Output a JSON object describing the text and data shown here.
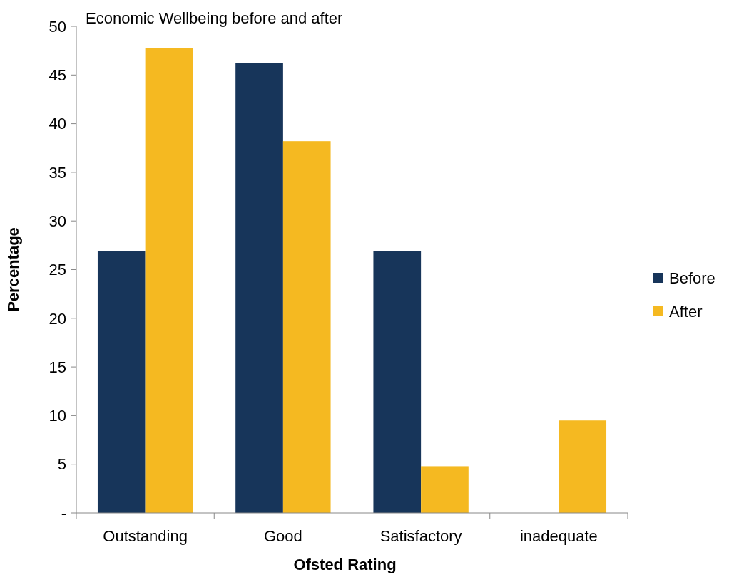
{
  "chart_data": {
    "type": "bar",
    "title": "Economic Wellbeing before and after",
    "xlabel": "Ofsted Rating",
    "ylabel": "Percentage",
    "categories": [
      "Outstanding",
      "Good",
      "Satisfactory",
      "inadequate"
    ],
    "series": [
      {
        "name": "Before",
        "color": "#17355a",
        "values": [
          26.9,
          46.2,
          26.9,
          0
        ]
      },
      {
        "name": "After",
        "color": "#f5b921",
        "values": [
          47.8,
          38.2,
          4.8,
          9.5
        ]
      }
    ],
    "ylim": [
      0,
      50
    ],
    "yticks": [
      {
        "value": 0,
        "label": "-"
      },
      5,
      10,
      15,
      20,
      25,
      30,
      35,
      40,
      45,
      50
    ],
    "grid": false,
    "legend": "right"
  }
}
